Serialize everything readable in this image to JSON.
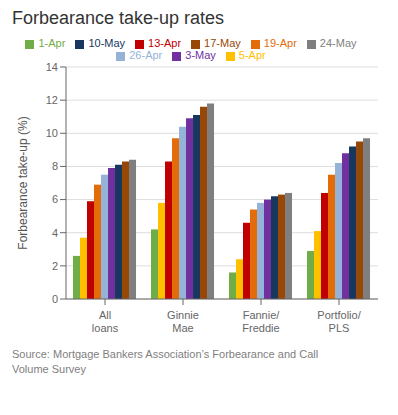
{
  "chart_data": {
    "type": "bar",
    "title": "Forbearance take-up rates",
    "ylabel": "Forbearance take-up (%)",
    "categories": [
      "All\nloans",
      "Ginnie\nMae",
      "Fannie/\nFreddie",
      "Portfolio/\nPLS"
    ],
    "series": [
      {
        "name": "1-Apr",
        "color": "#70ad47",
        "values": [
          2.6,
          4.2,
          1.6,
          2.9
        ]
      },
      {
        "name": "5-Apr",
        "color": "#ffc000",
        "values": [
          3.7,
          5.8,
          2.4,
          4.1
        ]
      },
      {
        "name": "13-Apr",
        "color": "#c00000",
        "values": [
          5.9,
          8.3,
          4.6,
          6.4
        ]
      },
      {
        "name": "19-Apr",
        "color": "#e36c09",
        "values": [
          6.9,
          9.7,
          5.4,
          7.5
        ]
      },
      {
        "name": "26-Apr",
        "color": "#95b3d7",
        "values": [
          7.5,
          10.4,
          5.8,
          8.2
        ]
      },
      {
        "name": "3-May",
        "color": "#7030a0",
        "values": [
          7.9,
          10.9,
          6.0,
          8.8
        ]
      },
      {
        "name": "10-May",
        "color": "#17375e",
        "values": [
          8.1,
          11.1,
          6.2,
          9.2
        ]
      },
      {
        "name": "17-May",
        "color": "#974706",
        "values": [
          8.3,
          11.6,
          6.3,
          9.5
        ]
      },
      {
        "name": "24-May",
        "color": "#7f7f7f",
        "values": [
          8.4,
          11.8,
          6.4,
          9.7
        ]
      }
    ],
    "ylim": [
      0,
      14
    ],
    "yticks": [
      0,
      2,
      4,
      6,
      8,
      10,
      12,
      14
    ],
    "grid": true,
    "legend": "top",
    "annotations": [
      "Source: Mortgage Bankers Association’s Forbearance and Call\nVolume Survey"
    ]
  }
}
